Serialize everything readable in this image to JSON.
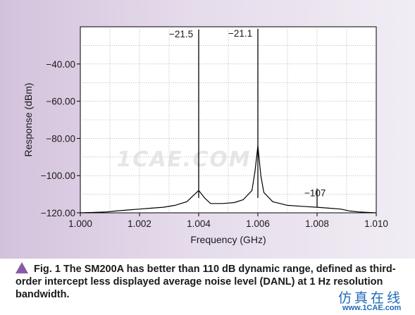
{
  "chart_data": {
    "type": "line",
    "title": "",
    "xlabel": "Frequency (GHz)",
    "ylabel": "Response (dBm)",
    "xlim": [
      1.0,
      1.01
    ],
    "ylim": [
      -120,
      -20
    ],
    "x_ticks": [
      "1.000",
      "1.002",
      "1.004",
      "1.006",
      "1.008",
      "1.010"
    ],
    "y_ticks": [
      "−120.00",
      "−100.00",
      "−80.00",
      "−60.00",
      "−40.00"
    ],
    "grid": true,
    "noise_floor": {
      "x": [
        1.0,
        1.0009,
        1.0012,
        1.0016,
        1.002,
        1.0024,
        1.0028,
        1.0032,
        1.0036,
        1.0038,
        1.004,
        1.0042,
        1.0044,
        1.0048,
        1.0052,
        1.0055,
        1.0058,
        1.0059,
        1.006,
        1.0061,
        1.0062,
        1.0065,
        1.007,
        1.0075,
        1.008,
        1.0084,
        1.0088,
        1.0091,
        1.0094,
        1.01
      ],
      "y": [
        -120,
        -119.5,
        -119,
        -118.5,
        -118,
        -117.5,
        -117,
        -116,
        -114,
        -111,
        -108,
        -112,
        -115,
        -115,
        -114.5,
        -113,
        -108,
        -98,
        -84,
        -100,
        -109,
        -114,
        -116,
        -116.5,
        -117,
        -117.5,
        -118,
        -119,
        -119.5,
        -120
      ]
    },
    "peaks": [
      {
        "x": 1.004,
        "y": -21.5,
        "label": "−21.5"
      },
      {
        "x": 1.006,
        "y": -21.1,
        "label": "−21.1"
      },
      {
        "x": 1.008,
        "y": -107,
        "label": "−107"
      }
    ],
    "watermark": "1CAE.COM"
  },
  "caption": {
    "label": "Fig. 1",
    "text": "The SM200A has better than 110 dB dynamic range, defined as third-order intercept less displayed average noise level (DANL) at 1 Hz resolution bandwidth."
  },
  "site_watermark": {
    "name": "仿真在线",
    "url": "www.1CAE.com"
  }
}
